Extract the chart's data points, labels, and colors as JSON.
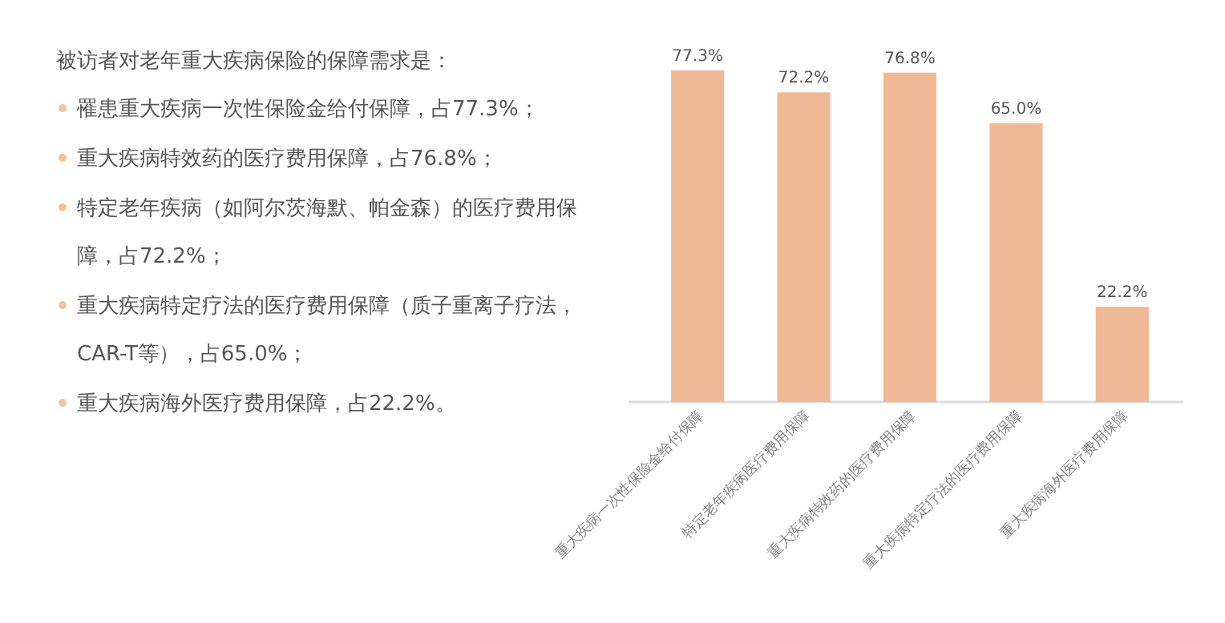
{
  "chart_data": {
    "type": "bar",
    "title": "被访者对老年重大疾病保险的保障需求是：",
    "annotations": [
      "罹患重大疾病一次性保险金给付保障，占77.3%；",
      "重大疾病特效药的医疗费用保障，占76.8%；",
      "特定老年疾病（如阿尔茨海默、帕金森）的医疗费用保障，占72.2%；",
      "重大疾病特定疗法的医疗费用保障（质子重离子疗法，CAR-T等），占65.0%；",
      "重大疾病海外医疗费用保障，占22.2%。"
    ],
    "categories": [
      "重大疾病一次性保险金给付保障",
      "特定老年疾病医疗费用保障",
      "重大疾病特效药的医疗费用保障",
      "重大疾病特定疗法的医疗费用保障",
      "重大疾病海外医疗费用保障"
    ],
    "values": [
      77.3,
      72.2,
      76.8,
      65.0,
      22.2
    ],
    "value_labels": [
      "77.3%",
      "72.2%",
      "76.8%",
      "65.0%",
      "22.2%"
    ],
    "color": "#efb995"
  }
}
